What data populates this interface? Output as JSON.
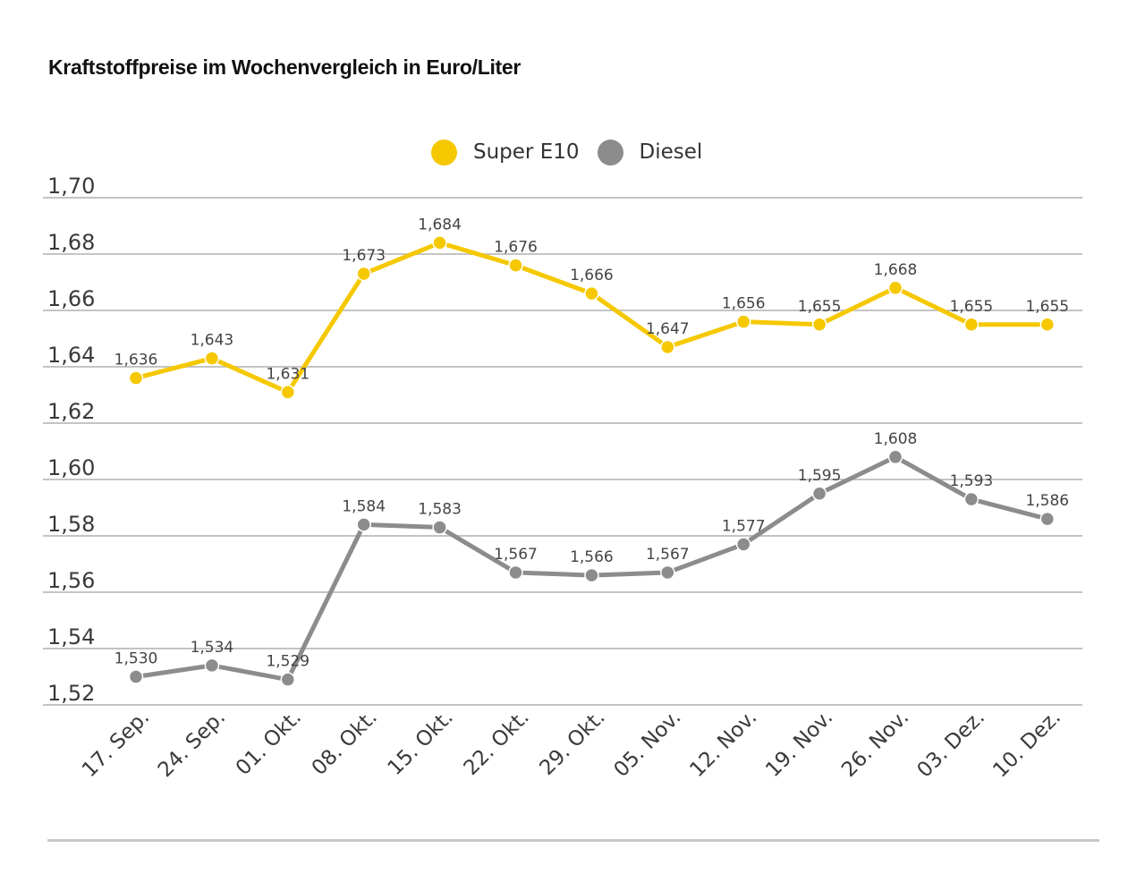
{
  "chart_data": {
    "type": "line",
    "title": "Kraftstoffpreise im Wochenvergleich in Euro/Liter",
    "categories": [
      "17. Sep.",
      "24. Sep.",
      "01. Okt.",
      "08. Okt.",
      "15. Okt.",
      "22. Okt.",
      "29. Okt.",
      "05. Nov.",
      "12. Nov.",
      "19. Nov.",
      "26. Nov.",
      "03. Dez.",
      "10. Dez."
    ],
    "series": [
      {
        "name": "Super E10",
        "color": "#f5c800",
        "values": [
          1.636,
          1.643,
          1.631,
          1.673,
          1.684,
          1.676,
          1.666,
          1.647,
          1.656,
          1.655,
          1.668,
          1.655,
          1.655
        ],
        "labels": [
          "1,636",
          "1,643",
          "1,631",
          "1,673",
          "1,684",
          "1,676",
          "1,666",
          "1,647",
          "1,656",
          "1,655",
          "1,668",
          "1,655",
          "1,655"
        ]
      },
      {
        "name": "Diesel",
        "color": "#8c8c8c",
        "values": [
          1.53,
          1.534,
          1.529,
          1.584,
          1.583,
          1.567,
          1.566,
          1.567,
          1.577,
          1.595,
          1.608,
          1.593,
          1.586
        ],
        "labels": [
          "1,530",
          "1,534",
          "1,529",
          "1,584",
          "1,583",
          "1,567",
          "1,566",
          "1,567",
          "1,577",
          "1,595",
          "1,608",
          "1,593",
          "1,586"
        ]
      }
    ],
    "y_ticks": [
      1.7,
      1.68,
      1.66,
      1.64,
      1.62,
      1.6,
      1.58,
      1.56,
      1.54,
      1.52
    ],
    "y_tick_labels": [
      "1,70",
      "1,68",
      "1,66",
      "1,64",
      "1,62",
      "1,60",
      "1,58",
      "1,56",
      "1,54",
      "1,52"
    ],
    "ylim": [
      1.52,
      1.7
    ],
    "grid": true,
    "legend_position": "top-center"
  },
  "colors": {
    "grid": "#c4c4c4",
    "tick_text": "#3a3a3a",
    "label_text": "#444444"
  }
}
